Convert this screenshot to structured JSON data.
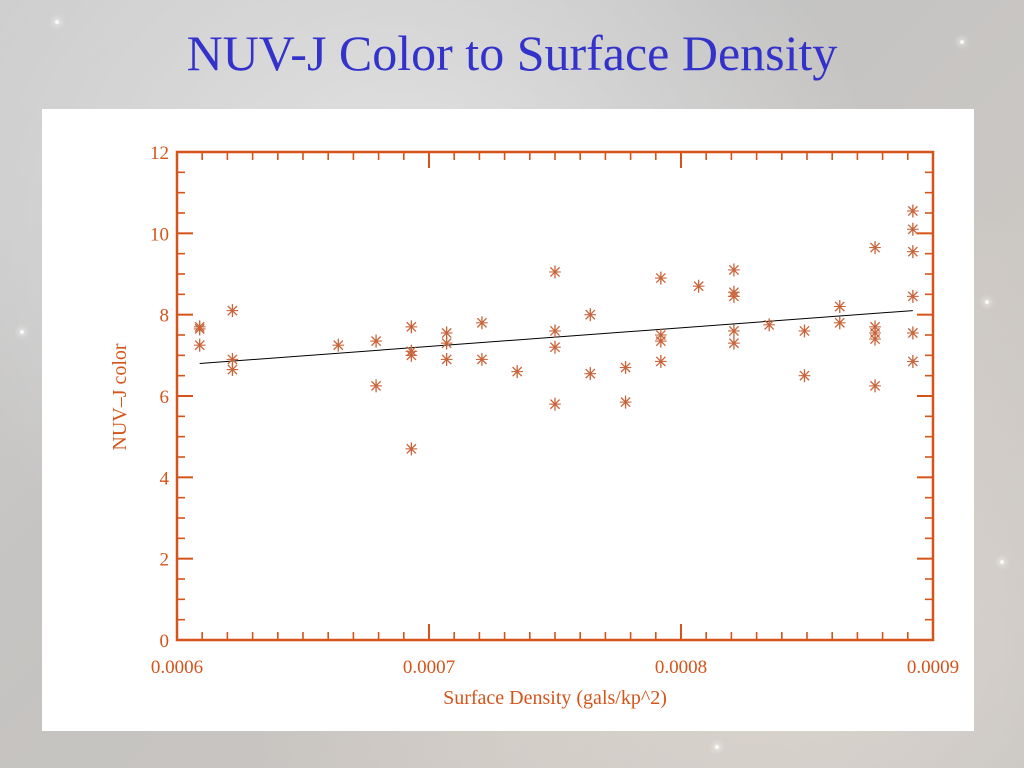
{
  "slide": {
    "title": "NUV-J Color to Surface Density"
  },
  "colors": {
    "title": "#3333cc",
    "axis": "#d4541a",
    "marker": "#c8643a",
    "fit_line": "#000000",
    "panel": "#ffffff"
  },
  "chart_data": {
    "type": "scatter",
    "title": "",
    "xlabel": "Surface Density (gals/kp^2)",
    "ylabel": "NUV–J color",
    "xlim": [
      0.0006,
      0.0009
    ],
    "ylim": [
      0,
      12
    ],
    "x_ticks": [
      "0.0006",
      "0.0007",
      "0.0008",
      "0.0009"
    ],
    "x_tick_values": [
      0.0006,
      0.0007,
      0.0008,
      0.0009
    ],
    "y_ticks": [
      "0",
      "2",
      "4",
      "6",
      "8",
      "10",
      "12"
    ],
    "y_tick_values": [
      0,
      2,
      4,
      6,
      8,
      10,
      12
    ],
    "grid": false,
    "legend": "none",
    "marker": "asterisk",
    "fit_line": {
      "x": [
        0.000609,
        0.000892
      ],
      "y": [
        6.8,
        8.1
      ]
    },
    "points": [
      {
        "x": 0.000609,
        "y": 7.65
      },
      {
        "x": 0.000609,
        "y": 7.7
      },
      {
        "x": 0.000609,
        "y": 7.25
      },
      {
        "x": 0.000622,
        "y": 8.1
      },
      {
        "x": 0.000622,
        "y": 6.9
      },
      {
        "x": 0.000622,
        "y": 6.65
      },
      {
        "x": 0.000664,
        "y": 7.25
      },
      {
        "x": 0.000679,
        "y": 7.35
      },
      {
        "x": 0.000679,
        "y": 6.25
      },
      {
        "x": 0.000693,
        "y": 7.7
      },
      {
        "x": 0.000693,
        "y": 7.1
      },
      {
        "x": 0.000693,
        "y": 7.0
      },
      {
        "x": 0.000693,
        "y": 4.7
      },
      {
        "x": 0.000707,
        "y": 7.55
      },
      {
        "x": 0.000707,
        "y": 7.3
      },
      {
        "x": 0.000707,
        "y": 6.9
      },
      {
        "x": 0.000721,
        "y": 7.8
      },
      {
        "x": 0.000721,
        "y": 6.9
      },
      {
        "x": 0.000735,
        "y": 6.6
      },
      {
        "x": 0.00075,
        "y": 9.05
      },
      {
        "x": 0.00075,
        "y": 7.6
      },
      {
        "x": 0.00075,
        "y": 7.2
      },
      {
        "x": 0.00075,
        "y": 5.8
      },
      {
        "x": 0.000764,
        "y": 8.0
      },
      {
        "x": 0.000764,
        "y": 6.55
      },
      {
        "x": 0.000778,
        "y": 6.7
      },
      {
        "x": 0.000778,
        "y": 5.85
      },
      {
        "x": 0.000792,
        "y": 8.9
      },
      {
        "x": 0.000792,
        "y": 7.5
      },
      {
        "x": 0.000792,
        "y": 7.35
      },
      {
        "x": 0.000792,
        "y": 6.85
      },
      {
        "x": 0.000807,
        "y": 8.7
      },
      {
        "x": 0.000821,
        "y": 9.1
      },
      {
        "x": 0.000821,
        "y": 8.55
      },
      {
        "x": 0.000821,
        "y": 8.45
      },
      {
        "x": 0.000821,
        "y": 7.6
      },
      {
        "x": 0.000821,
        "y": 7.3
      },
      {
        "x": 0.000835,
        "y": 7.75
      },
      {
        "x": 0.000849,
        "y": 7.6
      },
      {
        "x": 0.000849,
        "y": 6.5
      },
      {
        "x": 0.000863,
        "y": 8.2
      },
      {
        "x": 0.000863,
        "y": 7.8
      },
      {
        "x": 0.000877,
        "y": 9.65
      },
      {
        "x": 0.000877,
        "y": 7.7
      },
      {
        "x": 0.000877,
        "y": 7.55
      },
      {
        "x": 0.000877,
        "y": 7.4
      },
      {
        "x": 0.000877,
        "y": 6.25
      },
      {
        "x": 0.000892,
        "y": 10.55
      },
      {
        "x": 0.000892,
        "y": 10.1
      },
      {
        "x": 0.000892,
        "y": 9.55
      },
      {
        "x": 0.000892,
        "y": 8.45
      },
      {
        "x": 0.000892,
        "y": 7.55
      },
      {
        "x": 0.000892,
        "y": 6.85
      }
    ]
  }
}
